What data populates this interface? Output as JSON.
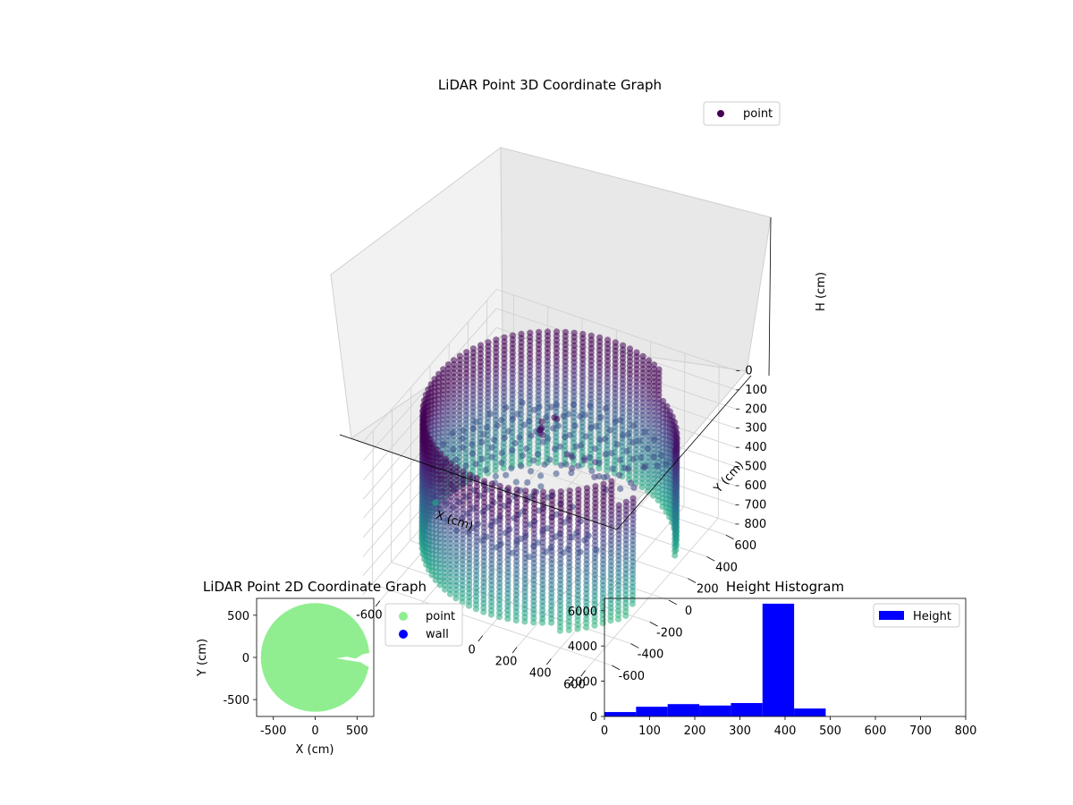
{
  "chart_data": [
    {
      "type": "scatter",
      "projection": "3d",
      "title": "LiDAR Point 3D Coordinate Graph",
      "xlabel": "X (cm)",
      "ylabel": "Y (cm)",
      "zlabel": "H (cm)",
      "xlim": [
        -700,
        700
      ],
      "ylim": [
        -700,
        700
      ],
      "zlim": [
        0,
        800
      ],
      "z_axis_inverted": true,
      "x_ticks": [
        "-600",
        "-400",
        "-200",
        "0",
        "200",
        "400",
        "600"
      ],
      "y_ticks": [
        "-600",
        "-400",
        "-200",
        "0",
        "200",
        "400",
        "600"
      ],
      "z_ticks": [
        "0",
        "100",
        "200",
        "300",
        "400",
        "500",
        "600",
        "700",
        "800"
      ],
      "colormap": "viridis (by height)",
      "grid": true,
      "legend": {
        "placement": "top-right",
        "entries": [
          {
            "label": "point",
            "color": "#440154"
          }
        ]
      },
      "series": [
        {
          "name": "point",
          "description": "cylindrical wall of points, radius about 650, height 0-800, with a gap around angle 0 on the +X side and a cluster of objects near the centre",
          "radius": 650,
          "height_range": [
            0,
            800
          ],
          "gap_angle_deg": [
            -20,
            20
          ]
        }
      ]
    },
    {
      "type": "scatter",
      "title": "LiDAR Point 2D Coordinate Graph",
      "xlabel": "X (cm)",
      "ylabel": "Y (cm)",
      "xlim": [
        -700,
        700
      ],
      "ylim": [
        -700,
        700
      ],
      "x_ticks": [
        "-500",
        "0",
        "500"
      ],
      "y_ticks": [
        "-500",
        "0",
        "500"
      ],
      "legend": {
        "placement": "outside right",
        "entries": [
          {
            "label": "point",
            "color": "#90ee90"
          },
          {
            "label": "wall",
            "color": "#0000ff"
          }
        ]
      },
      "series": [
        {
          "name": "point",
          "color": "#90ee90",
          "shape": "filled disc",
          "radius": 650,
          "notch_at_x": [
            250,
            700
          ],
          "notch_at_y": [
            -60,
            40
          ]
        },
        {
          "name": "wall",
          "color": "#0000ff",
          "values": []
        }
      ]
    },
    {
      "type": "bar",
      "subtype": "histogram",
      "title": "Height Histogram",
      "xlim": [
        0,
        800
      ],
      "ylim": [
        0,
        6700
      ],
      "x_ticks": [
        "0",
        "100",
        "200",
        "300",
        "400",
        "500",
        "600",
        "700",
        "800"
      ],
      "y_ticks": [
        "0",
        "2000",
        "4000",
        "6000"
      ],
      "legend": {
        "placement": "top-right",
        "entries": [
          {
            "label": "Height",
            "color": "#0000ff"
          }
        ]
      },
      "bins": [
        {
          "start": 0,
          "end": 70,
          "count": 250
        },
        {
          "start": 70,
          "end": 140,
          "count": 550
        },
        {
          "start": 140,
          "end": 210,
          "count": 700
        },
        {
          "start": 210,
          "end": 280,
          "count": 620
        },
        {
          "start": 280,
          "end": 350,
          "count": 760
        },
        {
          "start": 350,
          "end": 420,
          "count": 6400
        },
        {
          "start": 420,
          "end": 490,
          "count": 450
        }
      ],
      "color": "#0000ff"
    }
  ]
}
